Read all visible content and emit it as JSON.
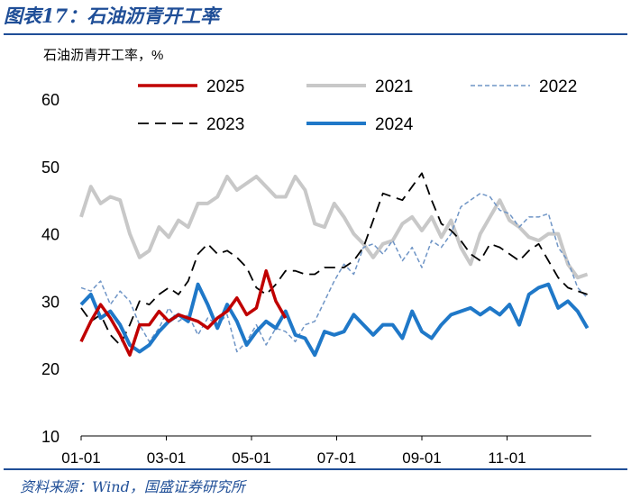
{
  "figure": {
    "title": "图表17：石油沥青开工率",
    "source": "资料来源：Wind，国盛证券研究所"
  },
  "chart_data": {
    "type": "line",
    "ylabel": "石油沥青开工率，%",
    "ylim": [
      10,
      60
    ],
    "yticks": [
      10,
      20,
      30,
      40,
      50,
      60
    ],
    "xticks": [
      "01-01",
      "03-01",
      "05-01",
      "07-01",
      "09-01",
      "11-01"
    ],
    "x_week_index": [
      0,
      1,
      2,
      3,
      4,
      5,
      6,
      7,
      8,
      9,
      10,
      11,
      12,
      13,
      14,
      15,
      16,
      17,
      18,
      19,
      20,
      21,
      22,
      23,
      24,
      25,
      26,
      27,
      28,
      29,
      30,
      31,
      32,
      33,
      34,
      35,
      36,
      37,
      38,
      39,
      40,
      41,
      42,
      43,
      44,
      45,
      46,
      47,
      48,
      49,
      50,
      51,
      52
    ],
    "legend_position": "top",
    "series": [
      {
        "name": "2025",
        "color": "#c00000",
        "style": "solid",
        "width": 3.5,
        "values": [
          24.0,
          27.0,
          29.5,
          27.5,
          25.0,
          22.0,
          26.5,
          26.5,
          28.5,
          27.0,
          28.0,
          27.5,
          27.0,
          26.0,
          27.5,
          28.5,
          30.5,
          28.0,
          29.0,
          34.5,
          30.0,
          27.5
        ]
      },
      {
        "name": "2021",
        "color": "#c8c8c8",
        "style": "solid",
        "width": 4,
        "values": [
          42.5,
          47.0,
          44.5,
          45.5,
          45.0,
          40.0,
          36.5,
          37.5,
          41.0,
          39.5,
          42.0,
          41.0,
          44.5,
          44.5,
          45.5,
          48.5,
          46.5,
          47.5,
          48.5,
          47.0,
          45.5,
          45.5,
          48.5,
          46.5,
          41.5,
          41.0,
          44.5,
          42.5,
          40.0,
          38.5,
          36.5,
          38.5,
          39.0,
          41.5,
          42.5,
          40.5,
          42.5,
          39.5,
          42.0,
          38.0,
          35.5,
          40.0,
          42.5,
          45.0,
          42.0,
          41.0,
          39.5,
          39.0,
          40.0,
          40.0,
          35.5,
          33.5,
          34.0
        ]
      },
      {
        "name": "2022",
        "color": "#6f95c6",
        "style": "dashed",
        "width": 1.5,
        "values": [
          32.0,
          31.5,
          33.0,
          29.5,
          31.5,
          30.0,
          26.5,
          24.0,
          26.0,
          29.0,
          27.0,
          28.0,
          25.0,
          27.5,
          26.5,
          28.0,
          22.5,
          24.0,
          26.5,
          23.5,
          26.0,
          25.5,
          24.0,
          26.5,
          27.0,
          30.0,
          33.0,
          35.5,
          34.0,
          38.0,
          38.5,
          37.0,
          39.0,
          36.0,
          38.0,
          35.0,
          39.0,
          38.0,
          40.0,
          44.0,
          45.0,
          46.0,
          45.5,
          43.5,
          43.0,
          41.0,
          42.5,
          42.5,
          43.0,
          38.0,
          36.0,
          32.0,
          30.5
        ]
      },
      {
        "name": "2023",
        "color": "#000000",
        "style": "dashed",
        "width": 1.8,
        "values": [
          29.0,
          27.0,
          28.0,
          25.0,
          23.5,
          26.5,
          30.0,
          29.5,
          31.0,
          32.0,
          31.0,
          33.0,
          37.0,
          38.5,
          37.0,
          37.5,
          36.5,
          35.0,
          32.0,
          31.0,
          32.5,
          34.5,
          34.5,
          34.0,
          34.0,
          35.0,
          35.0,
          35.0,
          36.0,
          38.0,
          42.0,
          46.0,
          45.5,
          45.0,
          47.0,
          49.0,
          45.0,
          41.5,
          40.5,
          39.0,
          37.0,
          36.0,
          38.5,
          38.0,
          37.0,
          36.0,
          37.5,
          38.5,
          36.0,
          33.5,
          32.0,
          31.5,
          31.0
        ]
      },
      {
        "name": "2024",
        "color": "#1f78c8",
        "style": "solid",
        "width": 4,
        "values": [
          29.5,
          31.0,
          27.5,
          28.5,
          26.5,
          23.5,
          22.5,
          23.5,
          25.5,
          27.0,
          28.0,
          27.0,
          32.5,
          29.5,
          26.0,
          29.5,
          27.0,
          23.5,
          25.5,
          27.0,
          26.0,
          28.5,
          25.0,
          24.5,
          22.0,
          25.5,
          25.0,
          25.5,
          28.0,
          26.5,
          25.0,
          26.5,
          26.5,
          24.5,
          28.5,
          25.5,
          24.5,
          26.5,
          28.0,
          28.5,
          29.0,
          28.0,
          29.0,
          28.0,
          29.5,
          26.5,
          31.0,
          32.0,
          32.5,
          29.0,
          30.0,
          28.5,
          26.0
        ]
      }
    ]
  }
}
